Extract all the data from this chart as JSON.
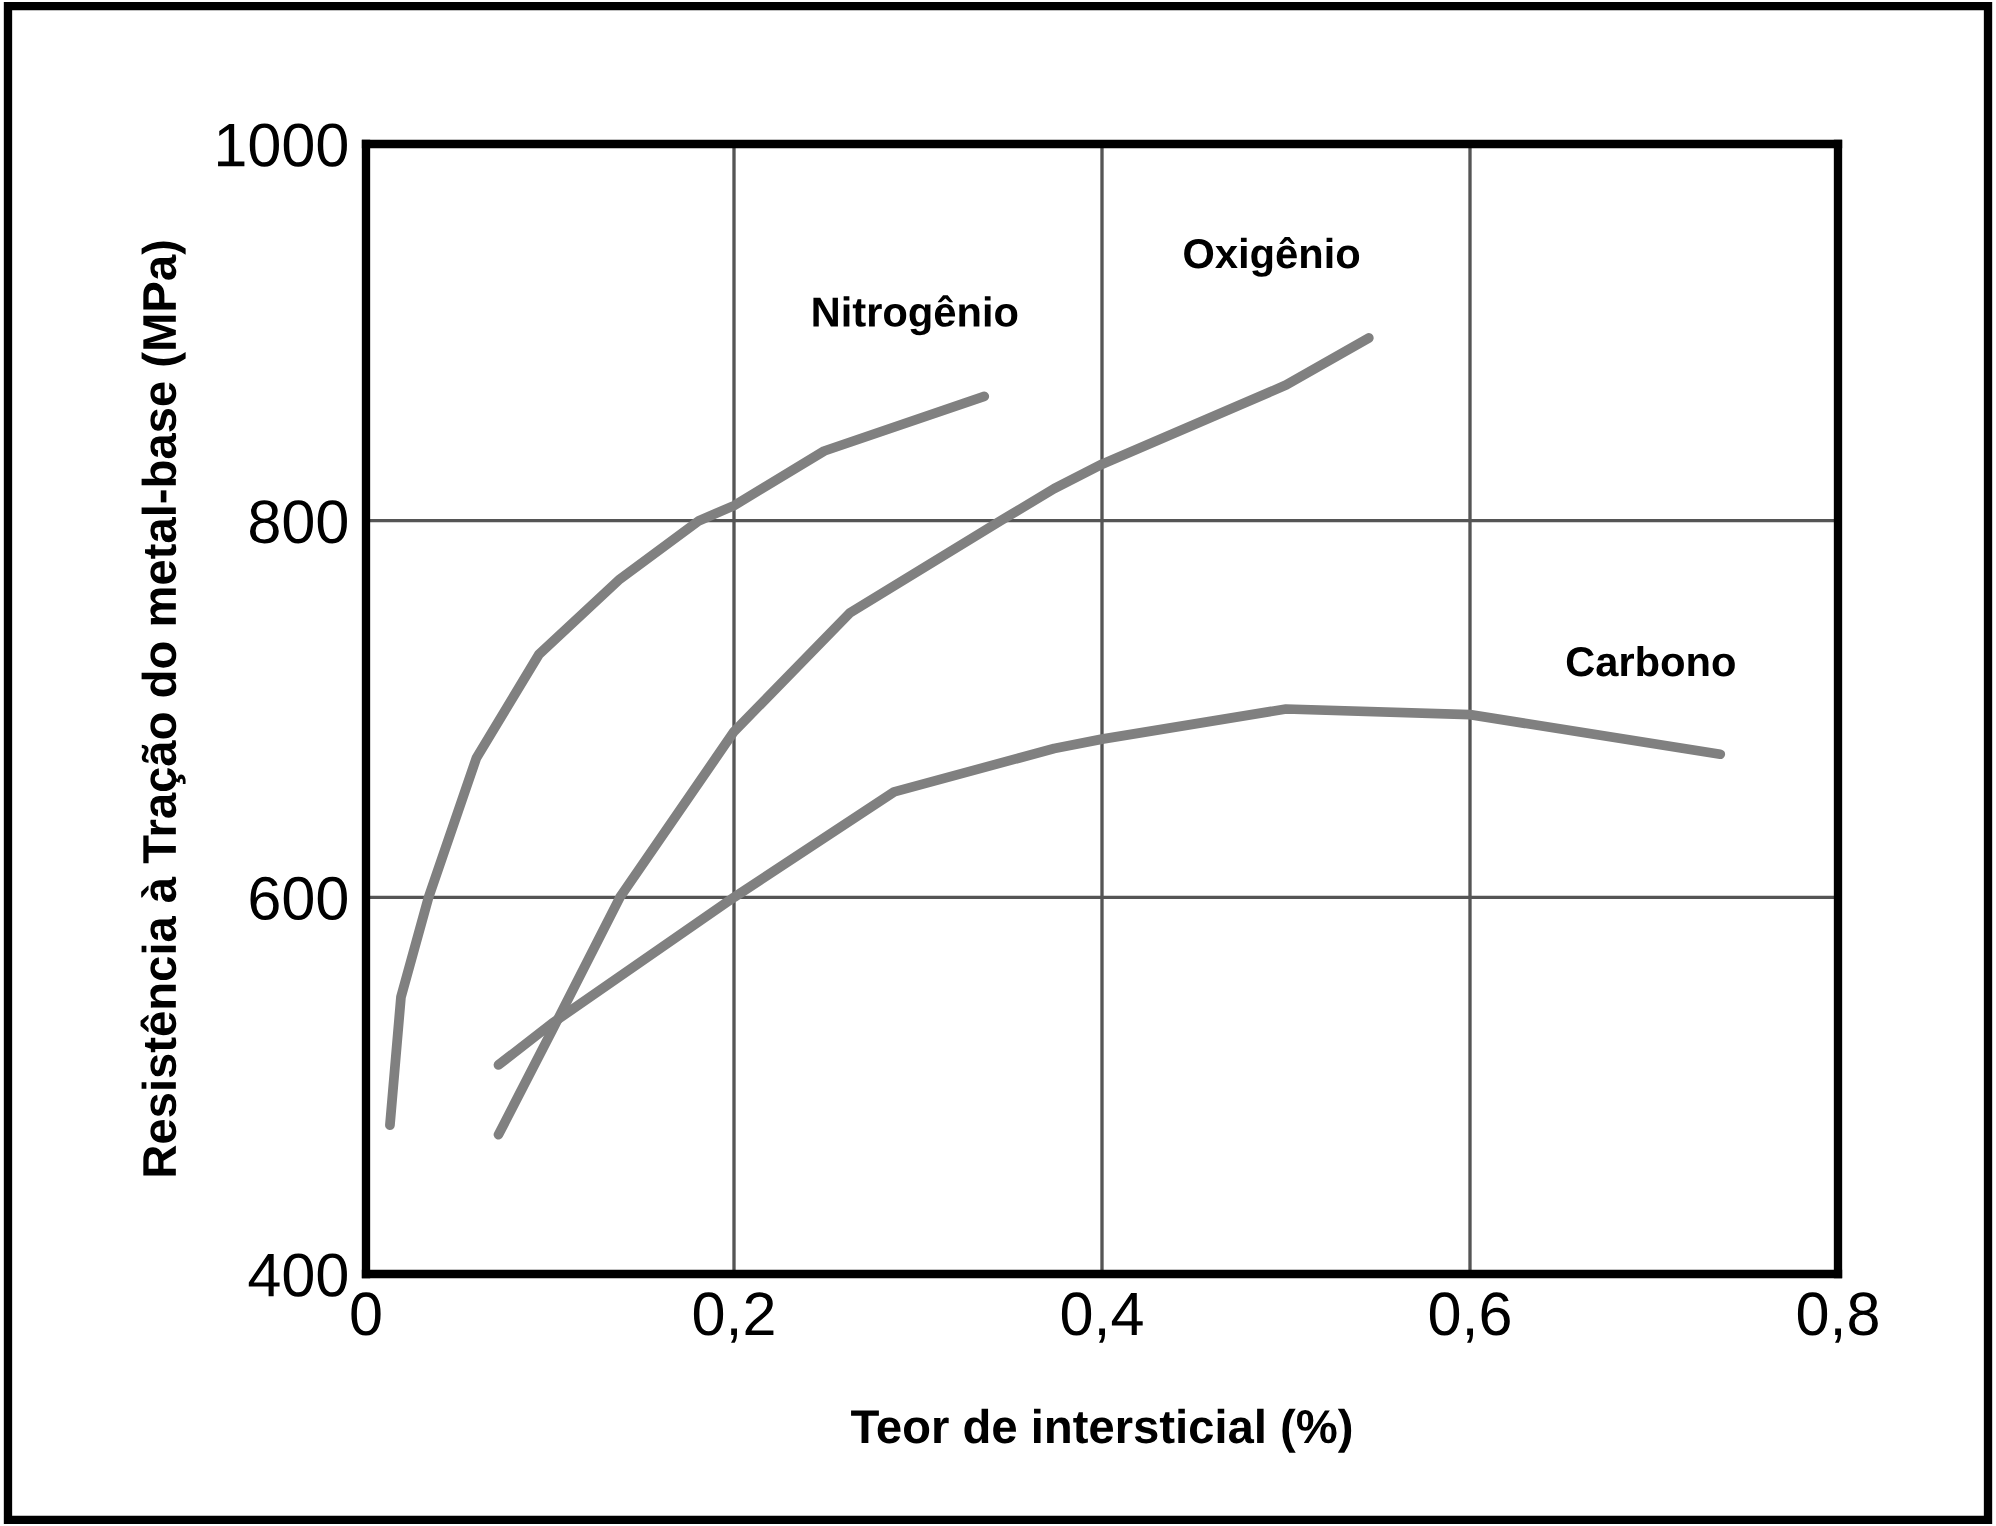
{
  "chart_data": {
    "type": "line",
    "xlabel": "Teor de intersticial (%)",
    "ylabel": "Resistência à Tração do metal-base (MPa)",
    "series": [
      {
        "name": "Nitrogênio",
        "color": "#808080",
        "x": [
          0.013,
          0.019,
          0.034,
          0.06,
          0.094,
          0.138,
          0.181,
          0.2,
          0.249,
          0.336
        ],
        "values": [
          479,
          547,
          600,
          674,
          729,
          769,
          800,
          808,
          837,
          866
        ]
      },
      {
        "name": "Oxigênio",
        "color": "#808080",
        "x": [
          0.072,
          0.101,
          0.138,
          0.2,
          0.263,
          0.345,
          0.374,
          0.4,
          0.5,
          0.545
        ],
        "values": [
          474,
          529,
          600,
          688,
          751,
          800,
          817,
          830,
          872,
          897
        ]
      },
      {
        "name": "Carbono",
        "color": "#808080",
        "x": [
          0.072,
          0.101,
          0.2,
          0.287,
          0.374,
          0.4,
          0.5,
          0.6,
          0.736
        ],
        "values": [
          511,
          533,
          600,
          656,
          679,
          684,
          700,
          697,
          676
        ]
      }
    ],
    "xlim": [
      0,
      0.8
    ],
    "ylim": [
      400,
      1000
    ],
    "xticks": [
      0,
      {
        "value": 0.2,
        "label": "0,2"
      },
      {
        "value": 0.4,
        "label": "0,4"
      },
      {
        "value": 0.6,
        "label": "0,6"
      },
      {
        "value": 0.8,
        "label": "0,8"
      }
    ],
    "yticks": [
      400,
      600,
      800,
      1000
    ],
    "grid": true,
    "marker": "none",
    "line_style": "solid",
    "legend": false
  }
}
